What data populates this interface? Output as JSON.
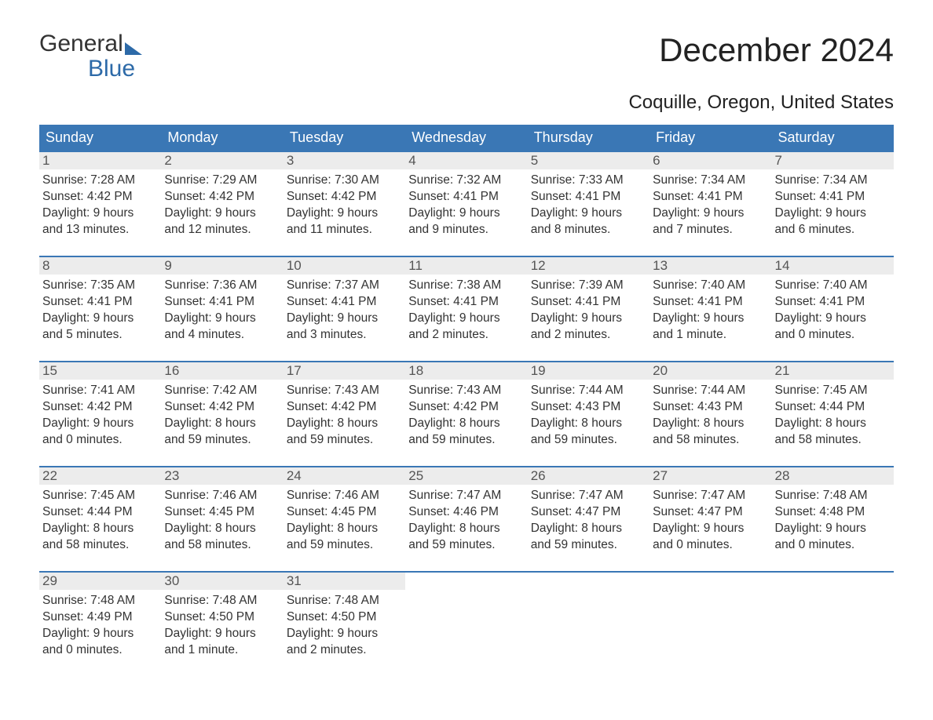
{
  "brand": {
    "line1": "General",
    "line2": "Blue"
  },
  "title": "December 2024",
  "location": "Coquille, Oregon, United States",
  "colors": {
    "header_bg": "#3a77b5",
    "header_text": "#ffffff",
    "daynum_bg": "#ececec",
    "daynum_text": "#555555",
    "body_text": "#333333",
    "accent": "#2d6aa8",
    "background": "#ffffff"
  },
  "typography": {
    "title_fontsize": 42,
    "location_fontsize": 24,
    "dow_fontsize": 18,
    "body_fontsize": 15.5,
    "font_family": "Arial"
  },
  "layout": {
    "columns": 7,
    "rows": 5,
    "cell_min_height": 134
  },
  "days_of_week": [
    "Sunday",
    "Monday",
    "Tuesday",
    "Wednesday",
    "Thursday",
    "Friday",
    "Saturday"
  ],
  "weeks": [
    [
      {
        "n": "1",
        "sunrise": "Sunrise: 7:28 AM",
        "sunset": "Sunset: 4:42 PM",
        "d1": "Daylight: 9 hours",
        "d2": "and 13 minutes."
      },
      {
        "n": "2",
        "sunrise": "Sunrise: 7:29 AM",
        "sunset": "Sunset: 4:42 PM",
        "d1": "Daylight: 9 hours",
        "d2": "and 12 minutes."
      },
      {
        "n": "3",
        "sunrise": "Sunrise: 7:30 AM",
        "sunset": "Sunset: 4:42 PM",
        "d1": "Daylight: 9 hours",
        "d2": "and 11 minutes."
      },
      {
        "n": "4",
        "sunrise": "Sunrise: 7:32 AM",
        "sunset": "Sunset: 4:41 PM",
        "d1": "Daylight: 9 hours",
        "d2": "and 9 minutes."
      },
      {
        "n": "5",
        "sunrise": "Sunrise: 7:33 AM",
        "sunset": "Sunset: 4:41 PM",
        "d1": "Daylight: 9 hours",
        "d2": "and 8 minutes."
      },
      {
        "n": "6",
        "sunrise": "Sunrise: 7:34 AM",
        "sunset": "Sunset: 4:41 PM",
        "d1": "Daylight: 9 hours",
        "d2": "and 7 minutes."
      },
      {
        "n": "7",
        "sunrise": "Sunrise: 7:34 AM",
        "sunset": "Sunset: 4:41 PM",
        "d1": "Daylight: 9 hours",
        "d2": "and 6 minutes."
      }
    ],
    [
      {
        "n": "8",
        "sunrise": "Sunrise: 7:35 AM",
        "sunset": "Sunset: 4:41 PM",
        "d1": "Daylight: 9 hours",
        "d2": "and 5 minutes."
      },
      {
        "n": "9",
        "sunrise": "Sunrise: 7:36 AM",
        "sunset": "Sunset: 4:41 PM",
        "d1": "Daylight: 9 hours",
        "d2": "and 4 minutes."
      },
      {
        "n": "10",
        "sunrise": "Sunrise: 7:37 AM",
        "sunset": "Sunset: 4:41 PM",
        "d1": "Daylight: 9 hours",
        "d2": "and 3 minutes."
      },
      {
        "n": "11",
        "sunrise": "Sunrise: 7:38 AM",
        "sunset": "Sunset: 4:41 PM",
        "d1": "Daylight: 9 hours",
        "d2": "and 2 minutes."
      },
      {
        "n": "12",
        "sunrise": "Sunrise: 7:39 AM",
        "sunset": "Sunset: 4:41 PM",
        "d1": "Daylight: 9 hours",
        "d2": "and 2 minutes."
      },
      {
        "n": "13",
        "sunrise": "Sunrise: 7:40 AM",
        "sunset": "Sunset: 4:41 PM",
        "d1": "Daylight: 9 hours",
        "d2": "and 1 minute."
      },
      {
        "n": "14",
        "sunrise": "Sunrise: 7:40 AM",
        "sunset": "Sunset: 4:41 PM",
        "d1": "Daylight: 9 hours",
        "d2": "and 0 minutes."
      }
    ],
    [
      {
        "n": "15",
        "sunrise": "Sunrise: 7:41 AM",
        "sunset": "Sunset: 4:42 PM",
        "d1": "Daylight: 9 hours",
        "d2": "and 0 minutes."
      },
      {
        "n": "16",
        "sunrise": "Sunrise: 7:42 AM",
        "sunset": "Sunset: 4:42 PM",
        "d1": "Daylight: 8 hours",
        "d2": "and 59 minutes."
      },
      {
        "n": "17",
        "sunrise": "Sunrise: 7:43 AM",
        "sunset": "Sunset: 4:42 PM",
        "d1": "Daylight: 8 hours",
        "d2": "and 59 minutes."
      },
      {
        "n": "18",
        "sunrise": "Sunrise: 7:43 AM",
        "sunset": "Sunset: 4:42 PM",
        "d1": "Daylight: 8 hours",
        "d2": "and 59 minutes."
      },
      {
        "n": "19",
        "sunrise": "Sunrise: 7:44 AM",
        "sunset": "Sunset: 4:43 PM",
        "d1": "Daylight: 8 hours",
        "d2": "and 59 minutes."
      },
      {
        "n": "20",
        "sunrise": "Sunrise: 7:44 AM",
        "sunset": "Sunset: 4:43 PM",
        "d1": "Daylight: 8 hours",
        "d2": "and 58 minutes."
      },
      {
        "n": "21",
        "sunrise": "Sunrise: 7:45 AM",
        "sunset": "Sunset: 4:44 PM",
        "d1": "Daylight: 8 hours",
        "d2": "and 58 minutes."
      }
    ],
    [
      {
        "n": "22",
        "sunrise": "Sunrise: 7:45 AM",
        "sunset": "Sunset: 4:44 PM",
        "d1": "Daylight: 8 hours",
        "d2": "and 58 minutes."
      },
      {
        "n": "23",
        "sunrise": "Sunrise: 7:46 AM",
        "sunset": "Sunset: 4:45 PM",
        "d1": "Daylight: 8 hours",
        "d2": "and 58 minutes."
      },
      {
        "n": "24",
        "sunrise": "Sunrise: 7:46 AM",
        "sunset": "Sunset: 4:45 PM",
        "d1": "Daylight: 8 hours",
        "d2": "and 59 minutes."
      },
      {
        "n": "25",
        "sunrise": "Sunrise: 7:47 AM",
        "sunset": "Sunset: 4:46 PM",
        "d1": "Daylight: 8 hours",
        "d2": "and 59 minutes."
      },
      {
        "n": "26",
        "sunrise": "Sunrise: 7:47 AM",
        "sunset": "Sunset: 4:47 PM",
        "d1": "Daylight: 8 hours",
        "d2": "and 59 minutes."
      },
      {
        "n": "27",
        "sunrise": "Sunrise: 7:47 AM",
        "sunset": "Sunset: 4:47 PM",
        "d1": "Daylight: 9 hours",
        "d2": "and 0 minutes."
      },
      {
        "n": "28",
        "sunrise": "Sunrise: 7:48 AM",
        "sunset": "Sunset: 4:48 PM",
        "d1": "Daylight: 9 hours",
        "d2": "and 0 minutes."
      }
    ],
    [
      {
        "n": "29",
        "sunrise": "Sunrise: 7:48 AM",
        "sunset": "Sunset: 4:49 PM",
        "d1": "Daylight: 9 hours",
        "d2": "and 0 minutes."
      },
      {
        "n": "30",
        "sunrise": "Sunrise: 7:48 AM",
        "sunset": "Sunset: 4:50 PM",
        "d1": "Daylight: 9 hours",
        "d2": "and 1 minute."
      },
      {
        "n": "31",
        "sunrise": "Sunrise: 7:48 AM",
        "sunset": "Sunset: 4:50 PM",
        "d1": "Daylight: 9 hours",
        "d2": "and 2 minutes."
      },
      {
        "empty": true
      },
      {
        "empty": true
      },
      {
        "empty": true
      },
      {
        "empty": true
      }
    ]
  ]
}
